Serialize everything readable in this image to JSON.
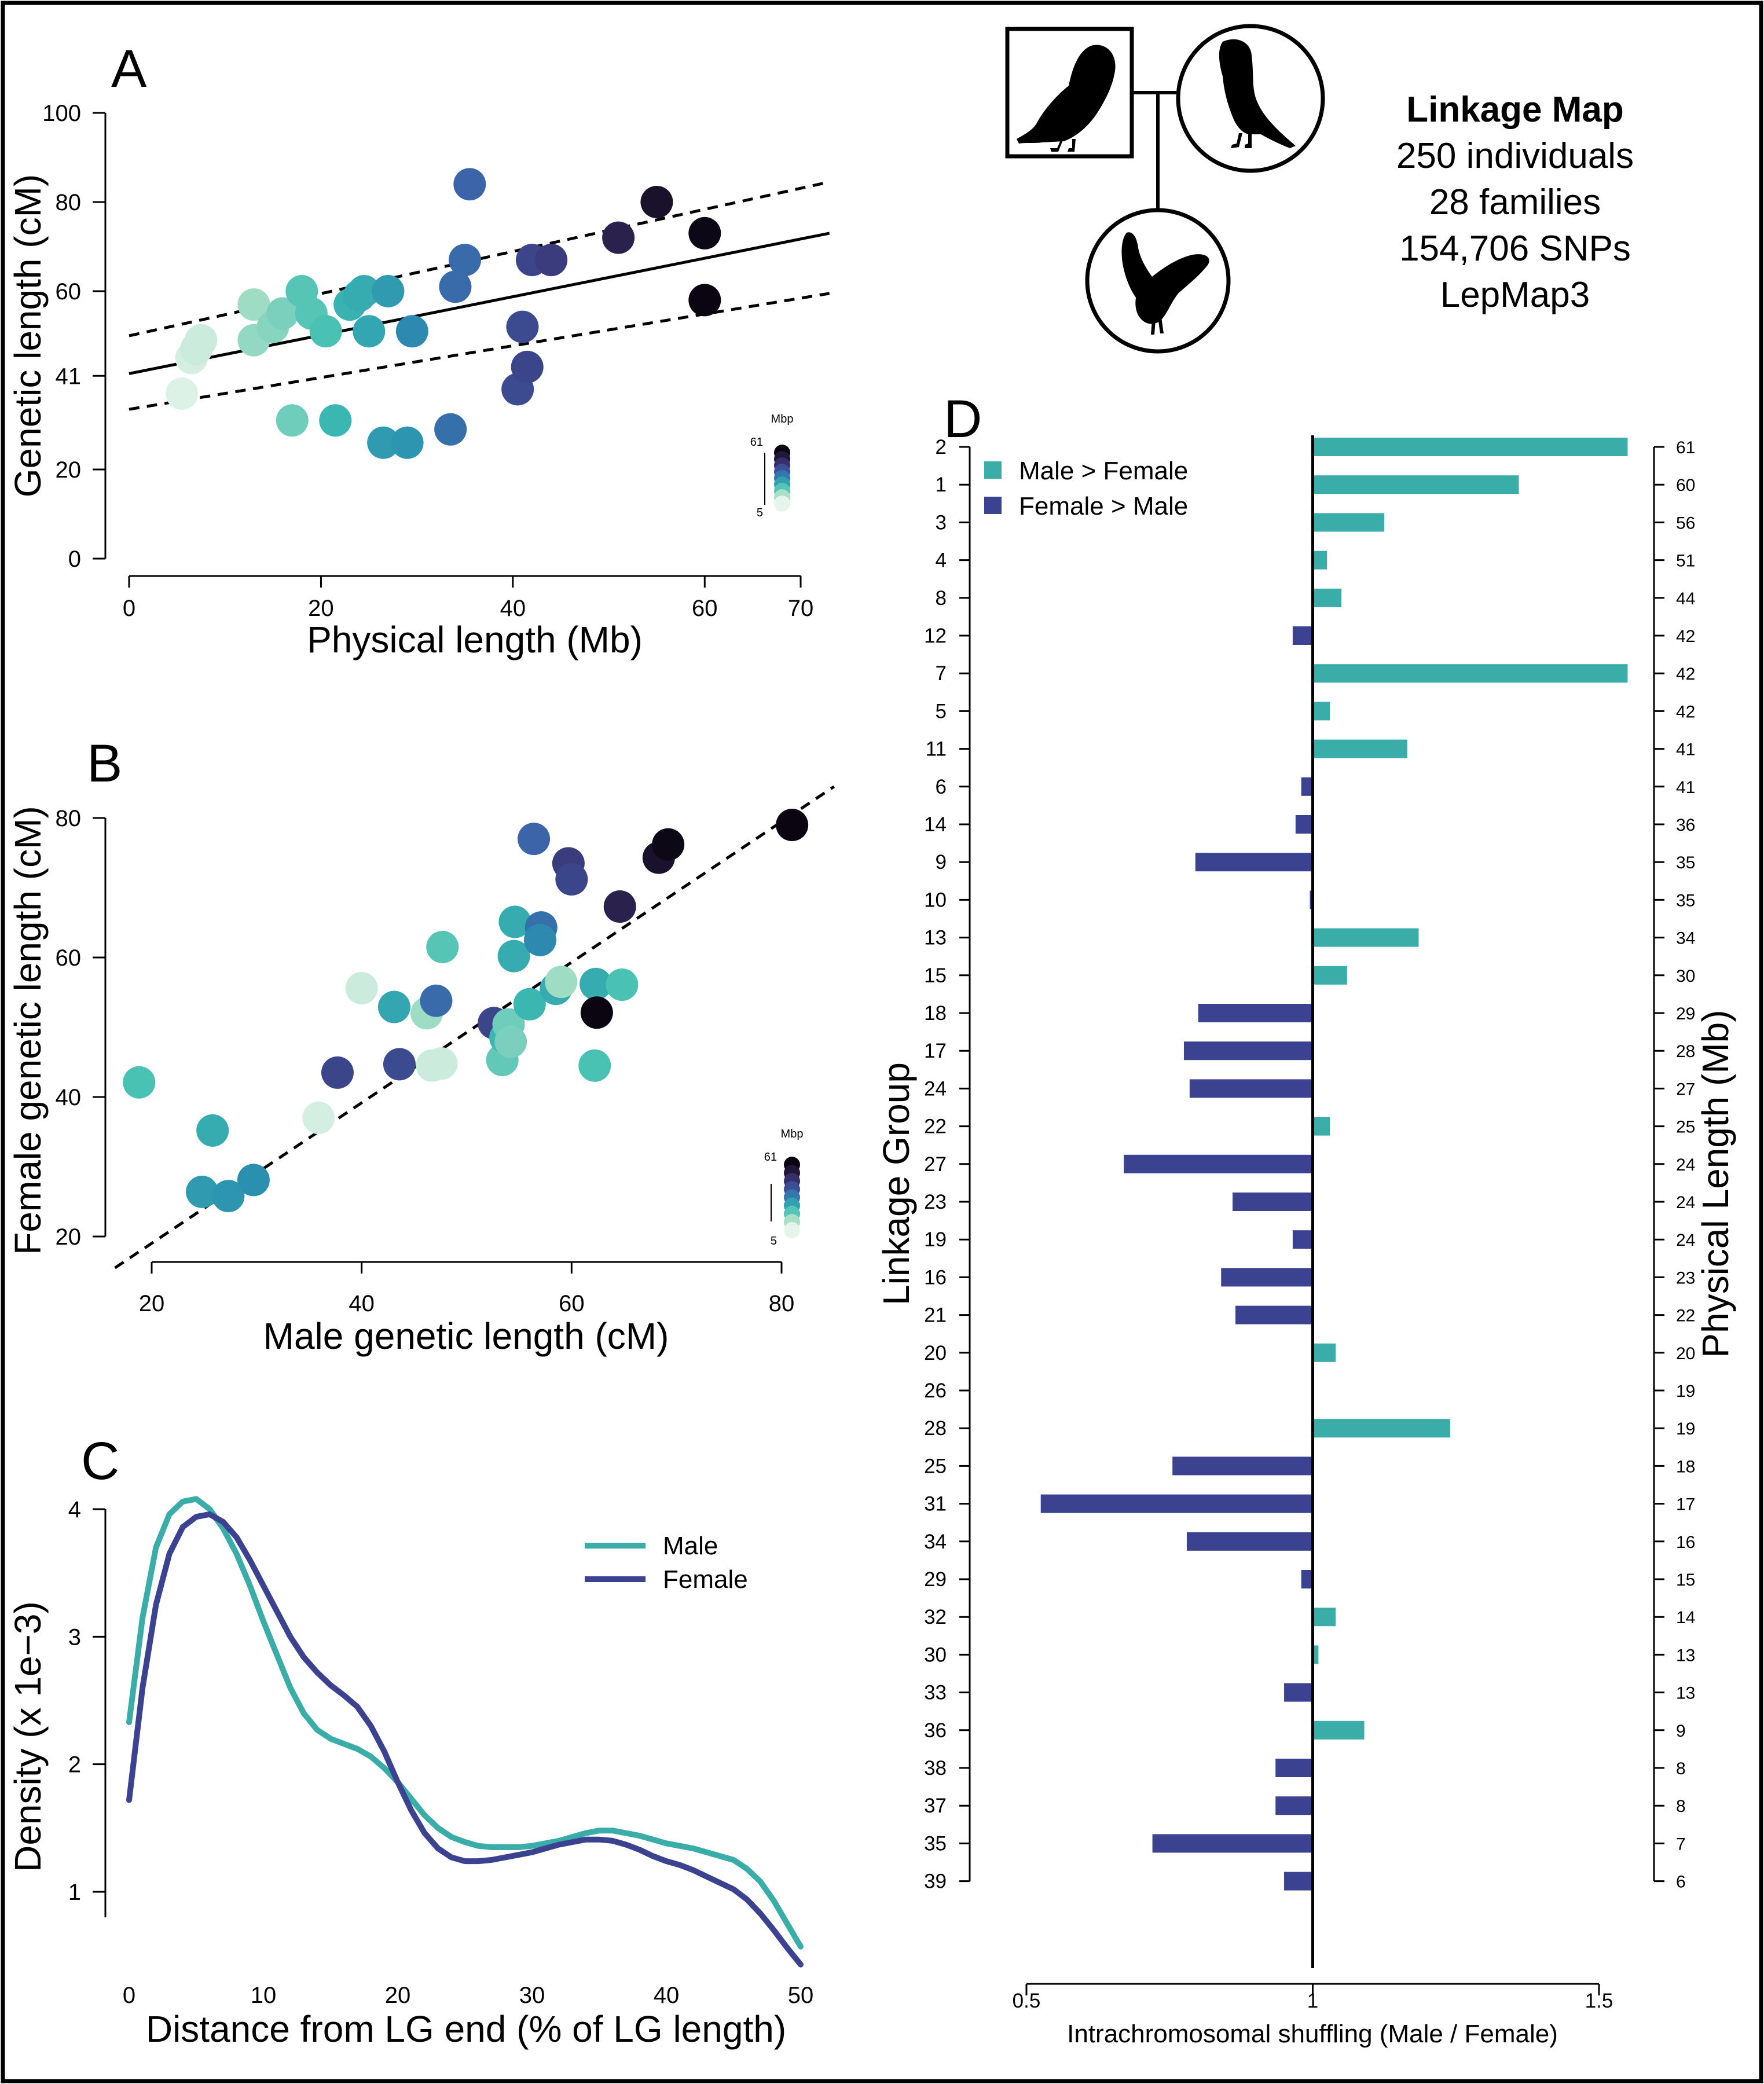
{
  "figure": {
    "colors": {
      "teal": "#3aada9",
      "navy": "#3b4390",
      "black": "#000000",
      "background": "#ffffff",
      "gradient": [
        "#e6f5ec",
        "#9fdcc4",
        "#3dbdb1",
        "#2b8fb0",
        "#3d5ea8",
        "#3a3778",
        "#241a3e",
        "#0a0510"
      ]
    },
    "icons": [
      "barn-owl-standing-icon",
      "barn-owl-perched-icon",
      "barn-owl-flying-icon"
    ]
  },
  "info": {
    "title": "Linkage Map",
    "individuals": "250 individuals",
    "families": "28 families",
    "snps": "154,706 SNPs",
    "software": "LepMap3"
  },
  "chart_data": [
    {
      "panel": "A",
      "type": "scatter",
      "xlabel": "Physical length (Mb)",
      "ylabel": "Genetic length (cM)",
      "xlim": [
        0,
        70
      ],
      "ylim": [
        0,
        100
      ],
      "xticks": [
        0,
        20,
        40,
        60,
        70
      ],
      "yticks": [
        0,
        20,
        41,
        60,
        80,
        100
      ],
      "colorbar": {
        "title": "Mbp",
        "max_label": "61",
        "min_label": "5"
      },
      "points": [
        {
          "x": 5.5,
          "y": 37,
          "c": 6
        },
        {
          "x": 6.5,
          "y": 45,
          "c": 7
        },
        {
          "x": 7.0,
          "y": 47,
          "c": 8
        },
        {
          "x": 7.5,
          "y": 49,
          "c": 8
        },
        {
          "x": 13.0,
          "y": 57,
          "c": 13
        },
        {
          "x": 13.0,
          "y": 49,
          "c": 14
        },
        {
          "x": 15.0,
          "y": 52,
          "c": 15
        },
        {
          "x": 16.0,
          "y": 55,
          "c": 16
        },
        {
          "x": 17.0,
          "y": 31,
          "c": 17
        },
        {
          "x": 18.0,
          "y": 60,
          "c": 19
        },
        {
          "x": 19.0,
          "y": 55,
          "c": 19
        },
        {
          "x": 20.5,
          "y": 51,
          "c": 20
        },
        {
          "x": 21.5,
          "y": 31,
          "c": 22
        },
        {
          "x": 23.0,
          "y": 57,
          "c": 23
        },
        {
          "x": 24.0,
          "y": 59,
          "c": 24
        },
        {
          "x": 24.5,
          "y": 60,
          "c": 24
        },
        {
          "x": 25.0,
          "y": 51,
          "c": 25
        },
        {
          "x": 26.5,
          "y": 26,
          "c": 27
        },
        {
          "x": 27.0,
          "y": 60,
          "c": 27
        },
        {
          "x": 29.0,
          "y": 26,
          "c": 28
        },
        {
          "x": 29.5,
          "y": 51,
          "c": 30
        },
        {
          "x": 33.5,
          "y": 29,
          "c": 34
        },
        {
          "x": 34.0,
          "y": 61,
          "c": 35
        },
        {
          "x": 35.0,
          "y": 67,
          "c": 35
        },
        {
          "x": 35.5,
          "y": 84,
          "c": 36
        },
        {
          "x": 40.5,
          "y": 38,
          "c": 41
        },
        {
          "x": 41.0,
          "y": 52,
          "c": 41
        },
        {
          "x": 41.5,
          "y": 43,
          "c": 42
        },
        {
          "x": 42.0,
          "y": 67,
          "c": 42
        },
        {
          "x": 44.0,
          "y": 67,
          "c": 44
        },
        {
          "x": 51.0,
          "y": 72,
          "c": 51
        },
        {
          "x": 55.0,
          "y": 80,
          "c": 56
        },
        {
          "x": 60.0,
          "y": 73,
          "c": 60
        },
        {
          "x": 60.0,
          "y": 58,
          "c": 61
        }
      ],
      "fit": {
        "x": [
          0,
          73
        ],
        "y": [
          41.5,
          73
        ]
      },
      "ci_upper": {
        "x": [
          0,
          73
        ],
        "y": [
          50,
          84.5
        ]
      },
      "ci_lower": {
        "x": [
          0,
          73
        ],
        "y": [
          33.5,
          59.5
        ]
      }
    },
    {
      "panel": "B",
      "type": "scatter",
      "xlabel": "Male genetic length (cM)",
      "ylabel": "Female genetic length (cM)",
      "xlim": [
        20,
        80
      ],
      "ylim": [
        20,
        80
      ],
      "xticks": [
        20,
        40,
        60,
        80
      ],
      "yticks": [
        20,
        40,
        60,
        80
      ],
      "colorbar": {
        "title": "Mbp",
        "max_label": "61",
        "min_label": "5"
      },
      "points": [
        {
          "x": 18.8,
          "y": 42.1,
          "c": 20
        },
        {
          "x": 25.8,
          "y": 35.2,
          "c": 24
        },
        {
          "x": 24.8,
          "y": 26.4,
          "c": 27
        },
        {
          "x": 27.3,
          "y": 25.8,
          "c": 28
        },
        {
          "x": 29.7,
          "y": 28.1,
          "c": 29
        },
        {
          "x": 35.9,
          "y": 37.0,
          "c": 7
        },
        {
          "x": 37.7,
          "y": 43.5,
          "c": 42
        },
        {
          "x": 40.0,
          "y": 55.6,
          "c": 8
        },
        {
          "x": 43.1,
          "y": 52.9,
          "c": 25
        },
        {
          "x": 43.6,
          "y": 44.7,
          "c": 41
        },
        {
          "x": 46.2,
          "y": 52.0,
          "c": 13
        },
        {
          "x": 46.7,
          "y": 44.5,
          "c": 8
        },
        {
          "x": 47.6,
          "y": 44.8,
          "c": 8
        },
        {
          "x": 47.1,
          "y": 53.8,
          "c": 35
        },
        {
          "x": 47.7,
          "y": 61.5,
          "c": 19
        },
        {
          "x": 52.6,
          "y": 50.6,
          "c": 42
        },
        {
          "x": 53.4,
          "y": 45.3,
          "c": 18
        },
        {
          "x": 53.7,
          "y": 48.5,
          "c": 22
        },
        {
          "x": 54.0,
          "y": 50.4,
          "c": 17
        },
        {
          "x": 54.2,
          "y": 47.9,
          "c": 16
        },
        {
          "x": 54.5,
          "y": 60.2,
          "c": 24
        },
        {
          "x": 54.6,
          "y": 65.1,
          "c": 24
        },
        {
          "x": 56.0,
          "y": 53.3,
          "c": 22
        },
        {
          "x": 56.4,
          "y": 77.0,
          "c": 36
        },
        {
          "x": 57.1,
          "y": 64.3,
          "c": 34
        },
        {
          "x": 57.0,
          "y": 62.5,
          "c": 30
        },
        {
          "x": 58.5,
          "y": 55.5,
          "c": 24
        },
        {
          "x": 59.0,
          "y": 56.5,
          "c": 13
        },
        {
          "x": 59.7,
          "y": 73.5,
          "c": 44
        },
        {
          "x": 60.0,
          "y": 71.2,
          "c": 42
        },
        {
          "x": 62.3,
          "y": 56.2,
          "c": 24
        },
        {
          "x": 62.2,
          "y": 44.5,
          "c": 20
        },
        {
          "x": 62.4,
          "y": 52.1,
          "c": 61
        },
        {
          "x": 64.8,
          "y": 56.1,
          "c": 20
        },
        {
          "x": 64.6,
          "y": 67.3,
          "c": 51
        },
        {
          "x": 68.3,
          "y": 74.3,
          "c": 56
        },
        {
          "x": 69.2,
          "y": 76.2,
          "c": 60
        },
        {
          "x": 81.0,
          "y": 79.0,
          "c": 61
        }
      ],
      "identity_line": {
        "x": [
          16.5,
          85
        ],
        "y": [
          15.5,
          84.5
        ]
      }
    },
    {
      "panel": "C",
      "type": "line",
      "xlabel": "Distance from LG end (% of LG length)",
      "ylabel": "Density (x 1e−3)",
      "xlim": [
        0,
        50
      ],
      "ylim": [
        0.5,
        4.1
      ],
      "xticks": [
        0,
        10,
        20,
        30,
        40,
        50
      ],
      "yticks": [
        1,
        2,
        3,
        4
      ],
      "legend": {
        "position": "top-right",
        "entries": [
          "Male",
          "Female"
        ]
      },
      "series": [
        {
          "name": "Male",
          "color": "#3aada9",
          "x": [
            0,
            1,
            2,
            3,
            4,
            5,
            6,
            7,
            8,
            9,
            10,
            11,
            12,
            13,
            14,
            15,
            16,
            17,
            18,
            19,
            20,
            21,
            22,
            23,
            24,
            25,
            26,
            27,
            28,
            29,
            30,
            31,
            32,
            33,
            34,
            35,
            36,
            37,
            38,
            39,
            40,
            41,
            42,
            43,
            44,
            45,
            46,
            47,
            48,
            49,
            50
          ],
          "y": [
            2.33,
            3.15,
            3.7,
            3.96,
            4.06,
            4.08,
            4.0,
            3.85,
            3.65,
            3.4,
            3.12,
            2.86,
            2.6,
            2.4,
            2.27,
            2.2,
            2.16,
            2.12,
            2.06,
            1.97,
            1.86,
            1.73,
            1.6,
            1.5,
            1.43,
            1.39,
            1.36,
            1.35,
            1.35,
            1.35,
            1.36,
            1.38,
            1.4,
            1.43,
            1.46,
            1.48,
            1.48,
            1.46,
            1.44,
            1.41,
            1.38,
            1.36,
            1.34,
            1.31,
            1.28,
            1.25,
            1.18,
            1.08,
            0.93,
            0.75,
            0.57
          ]
        },
        {
          "name": "Female",
          "color": "#3b4390",
          "x": [
            0,
            1,
            2,
            3,
            4,
            5,
            6,
            7,
            8,
            9,
            10,
            11,
            12,
            13,
            14,
            15,
            16,
            17,
            18,
            19,
            20,
            21,
            22,
            23,
            24,
            25,
            26,
            27,
            28,
            29,
            30,
            31,
            32,
            33,
            34,
            35,
            36,
            37,
            38,
            39,
            40,
            41,
            42,
            43,
            44,
            45,
            46,
            47,
            48,
            49,
            50
          ],
          "y": [
            1.72,
            2.6,
            3.25,
            3.65,
            3.86,
            3.94,
            3.96,
            3.9,
            3.78,
            3.6,
            3.4,
            3.2,
            3.0,
            2.84,
            2.72,
            2.62,
            2.54,
            2.45,
            2.3,
            2.1,
            1.86,
            1.64,
            1.46,
            1.34,
            1.27,
            1.24,
            1.24,
            1.25,
            1.27,
            1.29,
            1.31,
            1.34,
            1.37,
            1.39,
            1.41,
            1.41,
            1.4,
            1.37,
            1.33,
            1.28,
            1.24,
            1.21,
            1.17,
            1.12,
            1.07,
            1.02,
            0.94,
            0.83,
            0.7,
            0.56,
            0.43
          ]
        }
      ]
    },
    {
      "panel": "D",
      "type": "bar",
      "orientation": "horizontal",
      "xlabel": "Intrachromosomal shuffling (Male / Female)",
      "ylabel_left": "Linkage Group",
      "ylabel_right": "Physical Length (Mb)",
      "xlim": [
        0.5,
        1.55
      ],
      "xticks": [
        "0.5",
        "1",
        "1.5"
      ],
      "baseline": 1,
      "legend": {
        "position": "top-left",
        "entries": [
          {
            "label": "Male > Female",
            "color": "#3aada9"
          },
          {
            "label": "Female > Male",
            "color": "#3b4390"
          }
        ]
      },
      "groups": [
        "2",
        "1",
        "3",
        "4",
        "8",
        "12",
        "7",
        "5",
        "11",
        "6",
        "14",
        "9",
        "10",
        "13",
        "15",
        "18",
        "17",
        "24",
        "22",
        "27",
        "23",
        "19",
        "16",
        "21",
        "20",
        "26",
        "28",
        "25",
        "31",
        "34",
        "29",
        "32",
        "30",
        "33",
        "36",
        "38",
        "37",
        "35",
        "39"
      ],
      "physical_lengths": [
        "61",
        "60",
        "56",
        "51",
        "44",
        "42",
        "42",
        "42",
        "41",
        "41",
        "36",
        "35",
        "35",
        "34",
        "30",
        "29",
        "28",
        "27",
        "25",
        "24",
        "24",
        "24",
        "23",
        "22",
        "20",
        "19",
        "19",
        "18",
        "17",
        "16",
        "15",
        "14",
        "13",
        "13",
        "9",
        "8",
        "8",
        "7",
        "6"
      ],
      "values": [
        1.55,
        1.36,
        1.125,
        1.025,
        1.05,
        0.965,
        1.55,
        1.03,
        1.165,
        0.98,
        0.97,
        0.795,
        0.995,
        1.185,
        1.06,
        0.8,
        0.775,
        0.785,
        1.03,
        0.67,
        0.86,
        0.965,
        0.84,
        0.865,
        1.04,
        1.0,
        1.24,
        0.755,
        0.525,
        0.78,
        0.98,
        1.04,
        1.01,
        0.95,
        1.09,
        0.935,
        0.935,
        0.72,
        0.95
      ]
    }
  ]
}
